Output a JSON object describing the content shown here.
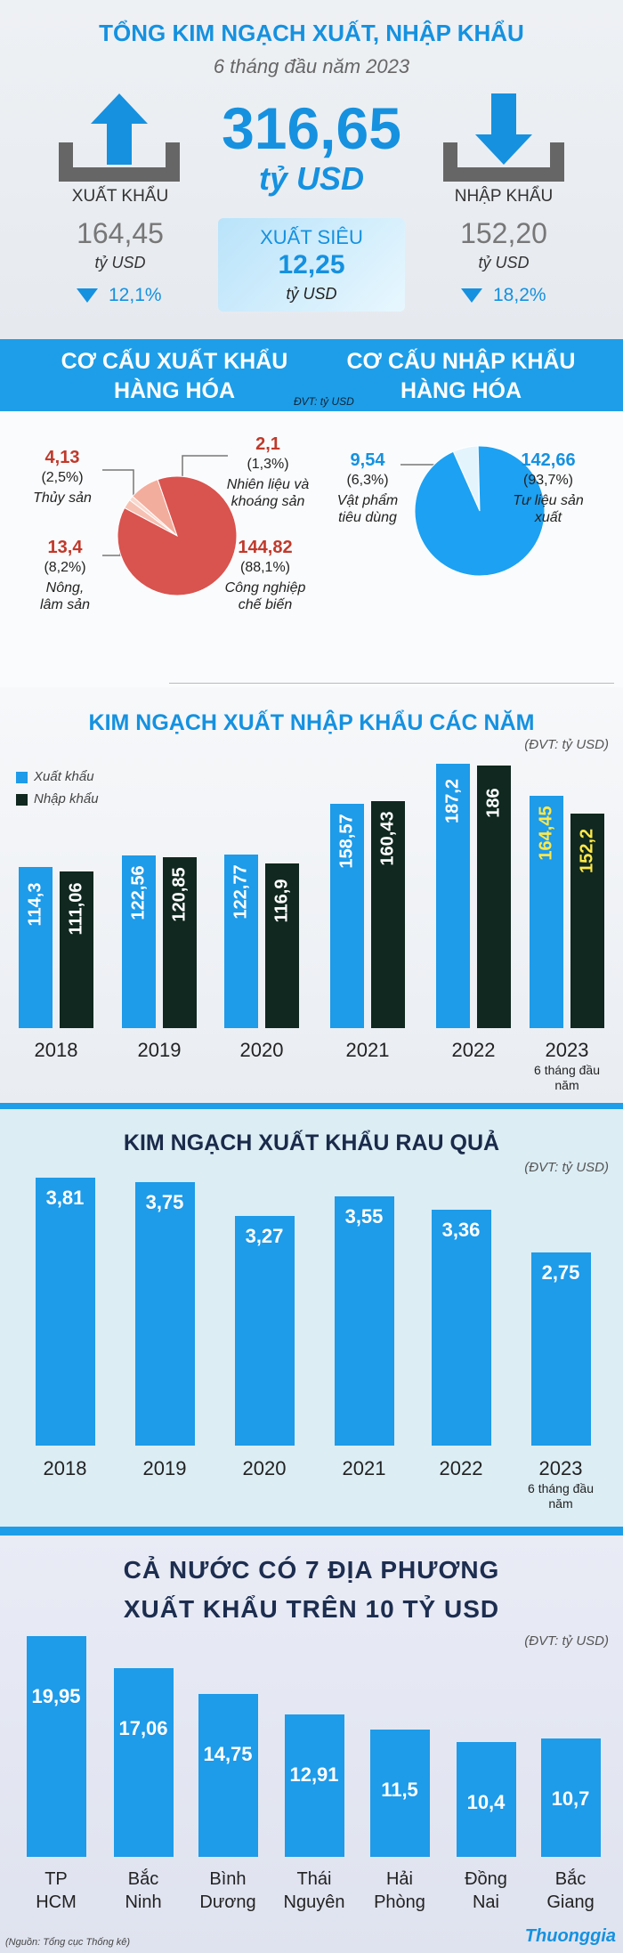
{
  "header": {
    "title": "TỔNG KIM NGẠCH XUẤT, NHẬP KHẨU",
    "subtitle": "6 tháng đầu năm 2023",
    "total": {
      "value": "316,65",
      "unit": "tỷ USD"
    },
    "export": {
      "label": "XUẤT KHẨU",
      "value": "164,45",
      "unit": "tỷ USD",
      "change": "12,1%"
    },
    "import": {
      "label": "NHẬP KHẨU",
      "value": "152,20",
      "unit": "tỷ USD",
      "change": "18,2%"
    },
    "surplus": {
      "label": "XUẤT SIÊU",
      "value": "12,25",
      "unit": "tỷ USD"
    }
  },
  "structure": {
    "export_title": "CƠ CẤU XUẤT KHẨU HÀNG HÓA",
    "import_title": "CƠ CẤU NHẬP KHẨU HÀNG HÓA",
    "unit_note": "ĐVT: tỷ USD"
  },
  "chart_data": [
    {
      "type": "pie",
      "categories": [
        "Thủy sản",
        "Nhiên liệu và khoáng sản",
        "Nông, lâm sản",
        "Công nghiệp chế biến"
      ],
      "values": [
        4.13,
        2.1,
        13.4,
        144.82
      ],
      "value_labels": [
        "4,13",
        "2,1",
        "13,4",
        "144,82"
      ],
      "shares": [
        2.5,
        1.3,
        8.2,
        88.1
      ],
      "share_labels": [
        "(2,5%)",
        "(1,3%)",
        "(8,2%)",
        "(88,1%)"
      ],
      "colors": [
        "#f6c1b3",
        "#f9d9cf",
        "#f3ad9d",
        "#d9534f"
      ]
    },
    {
      "type": "pie",
      "categories": [
        "Vật phẩm tiêu dùng",
        "Tư liệu sản xuất"
      ],
      "values": [
        9.54,
        142.66
      ],
      "value_labels": [
        "9,54",
        "142,66"
      ],
      "shares": [
        6.3,
        93.7
      ],
      "share_labels": [
        "(6,3%)",
        "(93,7%)"
      ],
      "colors": [
        "#e4f4fd",
        "#1da1f2"
      ]
    },
    {
      "type": "bar",
      "title": "KIM NGẠCH XUẤT NHẬP KHẨU CÁC NĂM",
      "unit_note": "(ĐVT: tỷ USD)",
      "categories": [
        "2018",
        "2019",
        "2020",
        "2021",
        "2022",
        "2023"
      ],
      "note": "6 tháng đầu năm",
      "series": [
        {
          "name": "Xuất khẩu",
          "color": "#1e9be9",
          "values": [
            114.3,
            122.56,
            122.77,
            158.57,
            187.2,
            164.45
          ],
          "value_labels": [
            "114,3",
            "122,56",
            "122,77",
            "158,57",
            "187,2",
            "164,45"
          ]
        },
        {
          "name": "Nhập khẩu",
          "color": "#10281f",
          "values": [
            111.06,
            120.85,
            116.9,
            160.43,
            186,
            152.2
          ],
          "value_labels": [
            "111,06",
            "120,85",
            "116,9",
            "160,43",
            "186",
            "152,2"
          ]
        }
      ]
    },
    {
      "type": "bar",
      "title": "KIM NGẠCH XUẤT KHẨU RAU QUẢ",
      "unit_note": "(ĐVT: tỷ USD)",
      "categories": [
        "2018",
        "2019",
        "2020",
        "2021",
        "2022",
        "2023"
      ],
      "note": "6 tháng đầu năm",
      "color": "#1e9be9",
      "values": [
        3.81,
        3.75,
        3.27,
        3.55,
        3.36,
        2.75
      ],
      "value_labels": [
        "3,81",
        "3,75",
        "3,27",
        "3,55",
        "3,36",
        "2,75"
      ]
    },
    {
      "type": "bar",
      "title": "CẢ NƯỚC CÓ 7 ĐỊA PHƯƠNG XUẤT KHẨU TRÊN 10 TỶ USD",
      "unit_note": "(ĐVT: tỷ USD)",
      "categories": [
        "TP HCM",
        "Bắc Ninh",
        "Bình Dương",
        "Thái Nguyên",
        "Hải Phòng",
        "Đồng Nai",
        "Bắc Giang"
      ],
      "color": "#1e9be9",
      "values": [
        19.95,
        17.06,
        14.75,
        12.91,
        11.5,
        10.4,
        10.7
      ],
      "value_labels": [
        "19,95",
        "17,06",
        "14,75",
        "12,91",
        "11,5",
        "10,4",
        "10,7"
      ]
    }
  ],
  "source": "(Nguồn: Tổng cục Thống kê)",
  "logo": "Thuonggia"
}
